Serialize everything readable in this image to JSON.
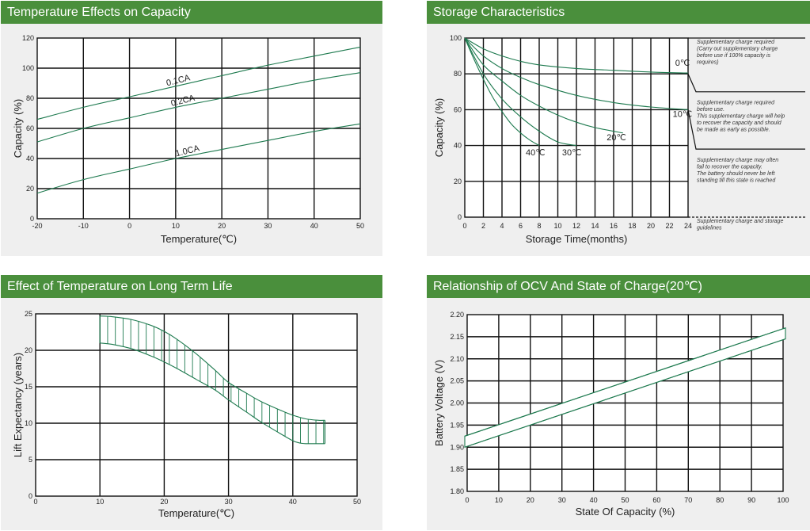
{
  "colors": {
    "header_bg": "#4a8f3c",
    "header_text": "#ffffff",
    "panel_bg": "#efefef",
    "curve": "#1e7a4f",
    "grid": "#111111"
  },
  "chart_data": [
    {
      "type": "line",
      "title": "Temperature Effects on Capacity",
      "xlabel": "Temperature(℃)",
      "ylabel": "Capacity  (%)",
      "xlim": [
        -20,
        50
      ],
      "ylim": [
        0,
        120
      ],
      "xticks": [
        "-20",
        "-10",
        "0",
        "10",
        "20",
        "30",
        "40",
        "50"
      ],
      "yticks": [
        "0",
        "20",
        "40",
        "60",
        "80",
        "100",
        "120"
      ],
      "grid": true,
      "series": [
        {
          "name": "0.1CA",
          "x": [
            -20,
            -10,
            0,
            10,
            20,
            30,
            40,
            50
          ],
          "y": [
            66,
            74,
            81,
            88,
            95,
            102,
            108,
            114
          ]
        },
        {
          "name": "0.2CA",
          "x": [
            -20,
            -10,
            0,
            10,
            20,
            30,
            40,
            50
          ],
          "y": [
            51,
            60,
            67,
            74,
            80,
            86,
            92,
            97
          ]
        },
        {
          "name": "1.0CA",
          "x": [
            -20,
            -10,
            0,
            10,
            20,
            30,
            40,
            50
          ],
          "y": [
            17,
            26,
            33,
            40,
            46,
            52,
            58,
            63
          ]
        }
      ]
    },
    {
      "type": "line",
      "title": "Storage Characteristics",
      "xlabel": "Storage  Time(months)",
      "ylabel": "Capacity  (%)",
      "xlim": [
        0,
        24
      ],
      "ylim": [
        0,
        100
      ],
      "xticks": [
        "0",
        "2",
        "4",
        "6",
        "8",
        "10",
        "12",
        "14",
        "16",
        "18",
        "20",
        "22",
        "24"
      ],
      "yticks": [
        "0",
        "20",
        "40",
        "60",
        "80",
        "100"
      ],
      "grid": true,
      "series": [
        {
          "name": "0℃",
          "x": [
            0,
            2,
            4,
            6,
            8,
            12,
            16,
            20,
            24
          ],
          "y": [
            100,
            94,
            90,
            87,
            85,
            83,
            82,
            81,
            80.5
          ]
        },
        {
          "name": "10℃",
          "x": [
            0,
            2,
            4,
            6,
            8,
            12,
            16,
            20,
            24
          ],
          "y": [
            100,
            90,
            83,
            78,
            74,
            68,
            64,
            61.5,
            60
          ]
        },
        {
          "name": "20℃",
          "x": [
            0,
            2,
            4,
            6,
            8,
            10,
            12,
            14,
            17
          ],
          "y": [
            100,
            85,
            76,
            68,
            62,
            57,
            53,
            50,
            47
          ]
        },
        {
          "name": "30℃",
          "x": [
            0,
            2,
            4,
            6,
            8,
            10,
            12
          ],
          "y": [
            100,
            80,
            66,
            56,
            48,
            42,
            40
          ]
        },
        {
          "name": "40℃",
          "x": [
            0,
            1,
            2,
            3,
            4,
            5,
            6,
            7,
            8
          ],
          "y": [
            100,
            88,
            77,
            67,
            59,
            52,
            47,
            43,
            40
          ]
        }
      ],
      "annotations": [
        {
          "text": "Supplementary charge required (Carry out supplementary charge before use if 100% capacity is requires)"
        },
        {
          "text": "Supplementary charge required before use. This supplementary charge will help to recover the capacity and should be made  as early as possible."
        },
        {
          "text": "Supplementary charge may often fail to recover the capacity. The battery should never be left standing till this state is reached"
        },
        {
          "text": "Supplementary charge and storage guidelines"
        }
      ]
    },
    {
      "type": "area",
      "title": "Effect of Temperature on Long Term Life",
      "xlabel": "Temperature(℃)",
      "ylabel": "Lift Expectancy  (years)",
      "xlim": [
        0,
        50
      ],
      "ylim": [
        0,
        25
      ],
      "xticks": [
        "0",
        "10",
        "20",
        "30",
        "40",
        "50"
      ],
      "yticks": [
        "0",
        "5",
        "10",
        "15",
        "20",
        "25"
      ],
      "grid": true,
      "series": [
        {
          "name": "upper",
          "x": [
            10,
            12,
            15,
            18,
            20,
            22,
            25,
            28,
            30,
            33,
            35,
            38,
            40,
            42,
            44,
            45
          ],
          "y": [
            24.7,
            24.6,
            24.2,
            23.4,
            22.6,
            21.5,
            19.5,
            17.2,
            15.6,
            14.0,
            13.0,
            11.8,
            11.1,
            10.6,
            10.4,
            10.4
          ]
        },
        {
          "name": "lower",
          "x": [
            10,
            12,
            15,
            18,
            20,
            22,
            25,
            28,
            30,
            33,
            35,
            38,
            40,
            41,
            42,
            44,
            45
          ],
          "y": [
            21.0,
            20.8,
            20.2,
            19.2,
            18.4,
            17.5,
            16.0,
            14.5,
            13.2,
            11.4,
            10.2,
            8.6,
            7.6,
            7.3,
            7.2,
            7.2,
            7.2
          ]
        }
      ]
    },
    {
      "type": "line",
      "title": "Relationship of OCV And State of Charge(20℃)",
      "xlabel": "State Of Capacity (%)",
      "ylabel": "Battery Voltage (V)",
      "xlim": [
        0,
        100
      ],
      "ylim": [
        1.8,
        2.2
      ],
      "xticks": [
        "0",
        "10",
        "20",
        "30",
        "40",
        "50",
        "60",
        "70",
        "80",
        "90",
        "100"
      ],
      "yticks": [
        "1.80",
        "1.85",
        "1.90",
        "1.95",
        "2.00",
        "2.05",
        "2.10",
        "2.15",
        "2.20"
      ],
      "grid": true,
      "series": [
        {
          "name": "upper",
          "x": [
            0,
            100
          ],
          "y": [
            1.925,
            2.17
          ]
        },
        {
          "name": "lower",
          "x": [
            0,
            100
          ],
          "y": [
            1.9,
            2.145
          ]
        }
      ]
    }
  ]
}
